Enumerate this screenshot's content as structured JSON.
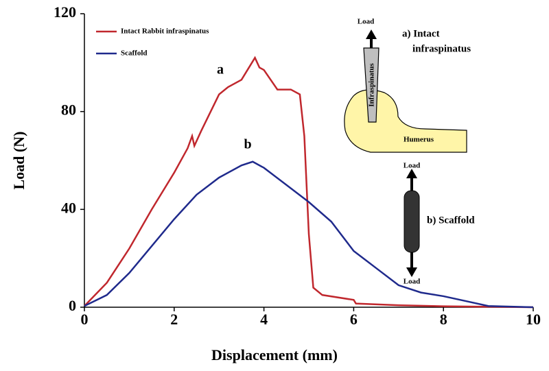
{
  "chart_data": {
    "type": "line",
    "xlabel": "Displacement (mm)",
    "ylabel": "Load (N)",
    "xlim": [
      0,
      10
    ],
    "xticks": [
      0,
      2,
      4,
      6,
      8,
      10
    ],
    "ylim": [
      0,
      120
    ],
    "yticks": [
      0,
      40,
      80,
      120
    ],
    "grid": false,
    "legend": "upper left",
    "series": [
      {
        "name": "Intact Rabbit infraspinatus",
        "color": "#c0272d",
        "x": [
          0,
          0.5,
          1,
          1.5,
          2,
          2.3,
          2.4,
          2.45,
          2.6,
          3,
          3.2,
          3.5,
          3.8,
          3.9,
          4,
          4.3,
          4.6,
          4.8,
          4.9,
          5,
          5.1,
          5.3,
          6,
          6.05,
          7,
          8,
          10
        ],
        "values": [
          0.5,
          10,
          24,
          40,
          55,
          65,
          70,
          66,
          72,
          87,
          90,
          93,
          102,
          98,
          97,
          89,
          89,
          87,
          70,
          30,
          8,
          5,
          3,
          1.5,
          0.8,
          0.4,
          0
        ]
      },
      {
        "name": "Scaffold",
        "color": "#1f2a8c",
        "x": [
          0,
          0.5,
          1,
          1.5,
          2,
          2.5,
          3,
          3.5,
          3.75,
          4,
          4.5,
          5,
          5.5,
          6,
          6.5,
          7,
          7.5,
          8,
          8.5,
          9,
          10
        ],
        "values": [
          0.5,
          5,
          14,
          25,
          36,
          46,
          53,
          58,
          59.5,
          57,
          50,
          43,
          35,
          23,
          16,
          9,
          6,
          4.5,
          2.5,
          0.5,
          0
        ]
      }
    ],
    "annotations": [
      "a",
      "b",
      "Load",
      "a) Intact",
      "infraspinatus",
      "Infraspinatus",
      "Humerus",
      "Load",
      "b) Scaffold",
      "Load"
    ]
  }
}
